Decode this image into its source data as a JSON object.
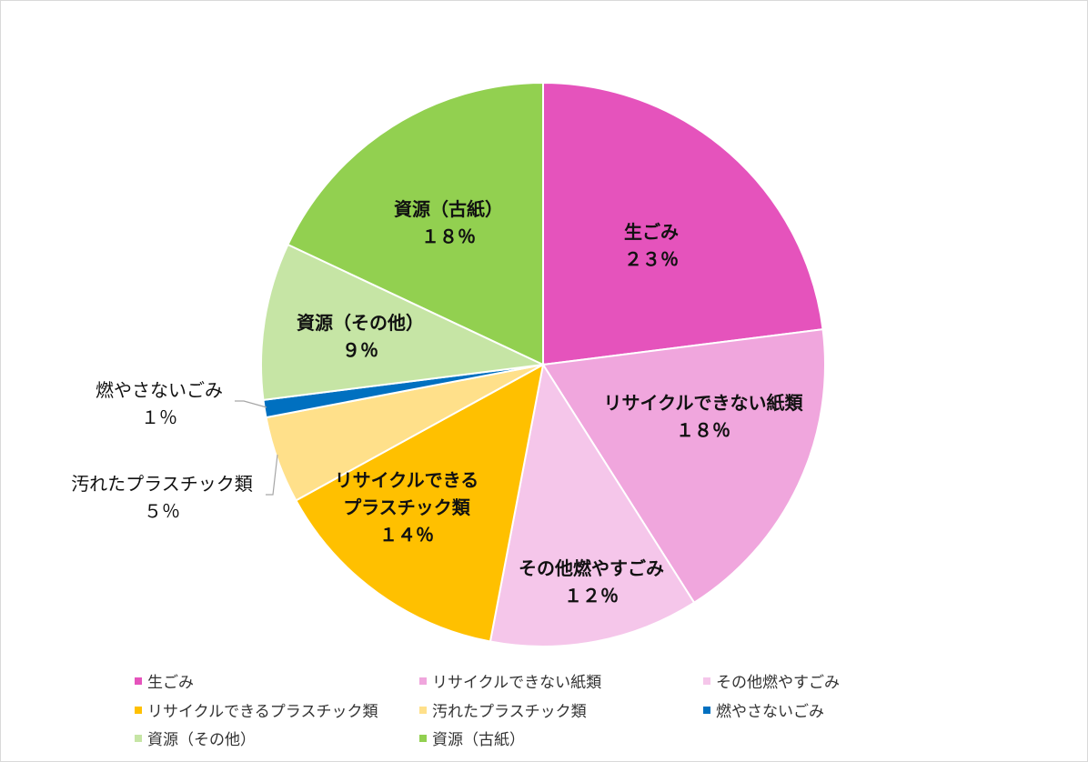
{
  "chart_data": {
    "type": "pie",
    "categories": [
      "生ごみ",
      "リサイクルできない紙類",
      "その他燃やすごみ",
      "リサイクルできるプラスチック類",
      "汚れたプラスチック類",
      "燃やさないごみ",
      "資源（その他）",
      "資源（古紙）"
    ],
    "values": [
      23,
      18,
      12,
      14,
      5,
      1,
      9,
      18
    ],
    "value_labels": [
      "２３％",
      "１８％",
      "１２％",
      "１４％",
      "５％",
      "１％",
      "９％",
      "１８％"
    ],
    "label_lines": [
      [
        "生ごみ"
      ],
      [
        "リサイクルできない紙類"
      ],
      [
        "その他燃やすごみ"
      ],
      [
        "リサイクルできる",
        "プラスチック類"
      ],
      [
        "汚れたプラスチック類"
      ],
      [
        "燃やさないごみ"
      ],
      [
        "資源（その他）"
      ],
      [
        "資源（古紙）"
      ]
    ],
    "colors": [
      "#E553BC",
      "#F0A6DD",
      "#F5C6EA",
      "#FFC000",
      "#FFE08A",
      "#0070C0",
      "#C6E5A5",
      "#92D050"
    ],
    "start_angle_deg": 0,
    "direction": "clockwise",
    "legend_position": "bottom"
  }
}
